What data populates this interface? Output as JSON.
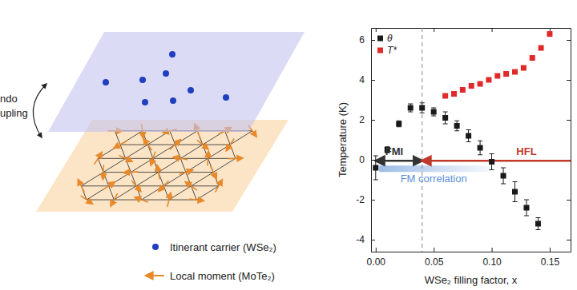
{
  "chart_data": {
    "type": "scatter",
    "x_label": "WSe₂ filling factor, x",
    "y_label": "Temperature (K)",
    "xlim": [
      -0.004,
      0.168
    ],
    "ylim": [
      -4.6,
      6.6
    ],
    "xticks": [
      {
        "value": 0,
        "label": "0.00"
      },
      0.05,
      {
        "value": 0.1,
        "label": "0.10"
      },
      0.15
    ],
    "yticks": [
      -4,
      -2,
      0,
      2,
      4,
      6
    ],
    "legend": "top-left",
    "series": [
      {
        "name": "θ",
        "color": "#1a1a1a",
        "marker": "square",
        "x": [
          0,
          0.01,
          0.02,
          0.03,
          0.04,
          0.05,
          0.06,
          0.07,
          0.08,
          0.09,
          0.1,
          0.11,
          0.12,
          0.13,
          0.14
        ],
        "values": [
          -0.4,
          0.5,
          1.8,
          2.6,
          2.6,
          2.4,
          2.1,
          1.7,
          1.2,
          0.6,
          -0.1,
          -0.8,
          -1.6,
          -2.4,
          -3.2
        ],
        "errors": [
          0.6,
          0.15,
          0.15,
          0.2,
          0.25,
          0.2,
          0.3,
          0.25,
          0.3,
          0.35,
          0.4,
          0.4,
          0.5,
          0.4,
          0.3
        ]
      },
      {
        "name": "T*",
        "color": "#e02a2a",
        "marker": "square",
        "x": [
          0.06,
          0.0675,
          0.075,
          0.0825,
          0.09,
          0.0975,
          0.105,
          0.1125,
          0.12,
          0.1275,
          0.135,
          0.1425,
          0.15
        ],
        "values": [
          3.2,
          3.3,
          3.5,
          3.7,
          3.8,
          4.0,
          4.2,
          4.3,
          4.4,
          4.6,
          5.1,
          5.6,
          6.3
        ]
      }
    ],
    "reference_lines": [
      {
        "x": 0.04,
        "line_style": "dashed",
        "color": "#999999"
      }
    ],
    "annotations": [
      {
        "text": "FMI",
        "type": "double_arrow",
        "x": [
          0,
          0.04
        ],
        "y": -0.05,
        "text_x": 0.016,
        "text_y": 0.25,
        "color": "#333333"
      },
      {
        "text": "HFL",
        "type": "arrow",
        "x": [
          0.04,
          0.168
        ],
        "y": -0.05,
        "text_x": 0.13,
        "text_y": 0.25,
        "color": "#c0392b"
      },
      {
        "text": "FM correlation",
        "type": "band",
        "x": [
          0.003,
          0.1
        ],
        "y": -0.45,
        "text_x": 0.05,
        "text_y": -1.1,
        "color": "#5b8fd6"
      }
    ]
  },
  "diagram": {
    "side_label": [
      "ndo",
      "upling"
    ],
    "legend": [
      {
        "label": "Itinerant carrier (WSe₂)",
        "color": "#1f3fbf"
      },
      {
        "label": "Local moment (MoTe₂)",
        "color": "#e8892b"
      }
    ]
  }
}
